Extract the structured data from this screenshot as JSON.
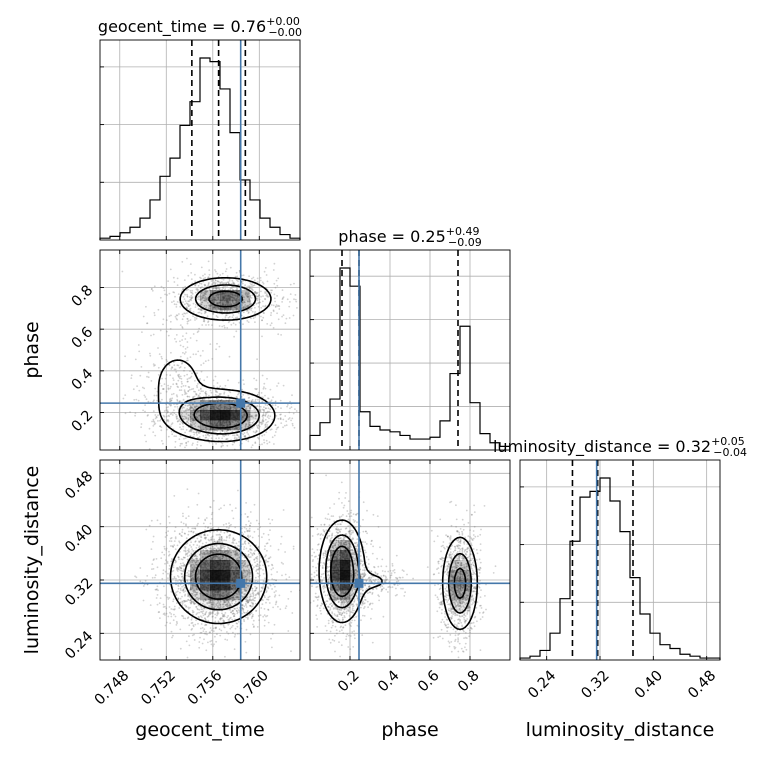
{
  "chart_data": {
    "type": "corner",
    "parameters": [
      "geocent_time",
      "phase",
      "luminosity_distance"
    ],
    "truth": {
      "geocent_time": 0.7584,
      "phase": 0.245,
      "luminosity_distance": 0.315
    },
    "colors": {
      "truth": "#4477aa",
      "hist": "#000000",
      "points": "#7f7f7f",
      "grid": "#b0b0b0"
    },
    "grid": true,
    "marginals": [
      {
        "parameter": "geocent_time",
        "title_prefix": "geocent_time = 0.76",
        "title_sup": "+0.00",
        "title_sub": "−0.00",
        "xlim": [
          0.7463,
          0.7635
        ],
        "quantiles": [
          0.7542,
          0.7565,
          0.7588
        ],
        "bin_edges": [
          0.7463,
          0.74716,
          0.74802,
          0.74888,
          0.74974,
          0.7506,
          0.75146,
          0.75232,
          0.75318,
          0.75404,
          0.7549,
          0.75576,
          0.75662,
          0.75748,
          0.75834,
          0.7592,
          0.76006,
          0.76092,
          0.76178,
          0.76264,
          0.7635
        ],
        "counts": [
          1,
          2,
          4,
          7,
          12,
          22,
          35,
          45,
          63,
          76,
          100,
          98,
          83,
          59,
          33,
          22,
          12,
          7,
          3,
          1
        ],
        "y_ticks": 3
      },
      {
        "parameter": "phase",
        "title_prefix": "phase = 0.25",
        "title_sup": "+0.49",
        "title_sub": "−0.09",
        "xlim": [
          0.0,
          1.0
        ],
        "quantiles": [
          0.16,
          0.245,
          0.74
        ],
        "bin_edges": [
          0.0,
          0.05,
          0.1,
          0.15,
          0.2,
          0.25,
          0.3,
          0.35,
          0.4,
          0.45,
          0.5,
          0.55,
          0.6,
          0.65,
          0.7,
          0.75,
          0.8,
          0.85,
          0.9,
          0.95,
          1.0
        ],
        "counts": [
          8,
          15,
          28,
          100,
          90,
          21,
          13,
          11,
          10,
          8,
          6,
          6,
          7,
          16,
          42,
          68,
          26,
          9,
          4,
          2
        ],
        "y_ticks": 4
      },
      {
        "parameter": "luminosity_distance",
        "title_prefix": "luminosity_distance = 0.32",
        "title_sup": "+0.05",
        "title_sub": "−0.04",
        "xlim": [
          0.2,
          0.5
        ],
        "quantiles": [
          0.2787,
          0.3165,
          0.3695
        ],
        "bin_edges": [
          0.2,
          0.215,
          0.23,
          0.245,
          0.26,
          0.275,
          0.29,
          0.305,
          0.32,
          0.335,
          0.35,
          0.365,
          0.38,
          0.395,
          0.41,
          0.425,
          0.44,
          0.455,
          0.47,
          0.485,
          0.5
        ],
        "counts": [
          1,
          2,
          5,
          14,
          32,
          62,
          85,
          88,
          95,
          83,
          67,
          43,
          24,
          14,
          8,
          6,
          3,
          2,
          1,
          1
        ],
        "y_ticks": 3
      }
    ],
    "ticks": {
      "geocent_time": {
        "values": [
          0.748,
          0.752,
          0.756,
          0.76
        ],
        "labels": [
          "0.748",
          "0.752",
          "0.756",
          "0.760"
        ]
      },
      "phase": {
        "values": [
          0.2,
          0.4,
          0.6,
          0.8
        ],
        "labels": [
          "0.2",
          "0.4",
          "0.6",
          "0.8"
        ]
      },
      "luminosity_distance": {
        "values": [
          0.24,
          0.32,
          0.4,
          0.48
        ],
        "labels": [
          "0.24",
          "0.32",
          "0.40",
          "0.48"
        ]
      }
    },
    "axis_labels": {
      "geocent_time": "geocent_time",
      "phase": "phase",
      "luminosity_distance": "luminosity_distance"
    },
    "contours": [
      {
        "x": "geocent_time",
        "y": "phase",
        "ylim": [
          0.02,
          0.98
        ],
        "modes": [
          {
            "cx": 0.7571,
            "cy": 0.745,
            "sx": 0.002,
            "sy": 0.052,
            "w": 1.0
          },
          {
            "cx": 0.7568,
            "cy": 0.185,
            "sx": 0.0022,
            "sy": 0.06,
            "w": 1.25
          },
          {
            "cx": 0.753,
            "cy": 0.33,
            "sx": 0.0016,
            "sy": 0.12,
            "w": 0.25
          }
        ]
      },
      {
        "x": "geocent_time",
        "y": "luminosity_distance",
        "ylim": [
          0.2,
          0.5
        ],
        "modes": [
          {
            "cx": 0.7565,
            "cy": 0.325,
            "sx": 0.002,
            "sy": 0.034,
            "w": 1.0
          }
        ]
      },
      {
        "x": "phase",
        "y": "luminosity_distance",
        "ylim": [
          0.2,
          0.5
        ],
        "modes": [
          {
            "cx": 0.16,
            "cy": 0.333,
            "sx": 0.055,
            "sy": 0.037,
            "w": 1.1
          },
          {
            "cx": 0.75,
            "cy": 0.315,
            "sx": 0.045,
            "sy": 0.036,
            "w": 0.8
          },
          {
            "cx": 0.32,
            "cy": 0.318,
            "sx": 0.07,
            "sy": 0.012,
            "w": 0.15
          }
        ]
      }
    ]
  }
}
